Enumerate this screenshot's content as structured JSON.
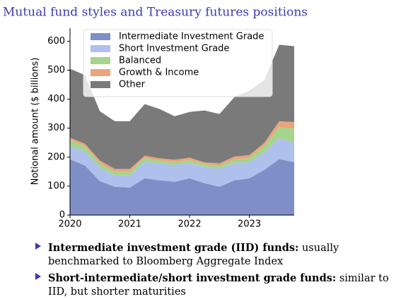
{
  "chart_data": {
    "type": "stacked-area",
    "title": "Mutual fund styles and Treasury futures positions",
    "y_label": "Notional amount ($ billions)",
    "x": [
      2020,
      2020.25,
      2020.5,
      2020.75,
      2021,
      2021.25,
      2021.5,
      2021.75,
      2022,
      2022.25,
      2022.5,
      2022.75,
      2023,
      2023.25,
      2023.5,
      2023.75
    ],
    "xlim": [
      2020,
      2023.75
    ],
    "xticks": [
      2020,
      2021,
      2022,
      2023
    ],
    "ylim": [
      0,
      645
    ],
    "yticks": [
      0,
      100,
      200,
      300,
      400,
      500,
      600
    ],
    "legend": "upper left",
    "series": [
      {
        "name": "Intermediate Investment Grade",
        "color": "#7f8ec6",
        "values": [
          193,
          171,
          117,
          98,
          95,
          127,
          120,
          115,
          127,
          110,
          98,
          120,
          127,
          156,
          193,
          183
        ]
      },
      {
        "name": "Short Investment Grade",
        "color": "#afc0ec",
        "values": [
          44,
          49,
          46,
          39,
          42,
          58,
          58,
          58,
          53,
          56,
          63,
          60,
          56,
          61,
          73,
          68
        ]
      },
      {
        "name": "Balanced",
        "color": "#a6d48c",
        "values": [
          22,
          18,
          15,
          12,
          12,
          12,
          10,
          10,
          10,
          10,
          10,
          12,
          14,
          22,
          38,
          48
        ]
      },
      {
        "name": "Growth & Income",
        "color": "#eaa57c",
        "values": [
          8,
          8,
          10,
          10,
          10,
          8,
          8,
          8,
          8,
          6,
          8,
          10,
          10,
          10,
          20,
          22
        ]
      },
      {
        "name": "Other",
        "color": "#7a7a7a",
        "values": [
          238,
          237,
          170,
          165,
          165,
          178,
          170,
          150,
          158,
          179,
          170,
          205,
          222,
          217,
          264,
          262
        ]
      }
    ]
  },
  "bullets": [
    {
      "bold": "Intermediate investment grade (IID) funds:",
      "text": "usually benchmarked to Bloomberg Aggregate Index"
    },
    {
      "bold": "Short-intermediate/short investment grade funds:",
      "text": "similar to IID, but shorter maturities"
    }
  ]
}
